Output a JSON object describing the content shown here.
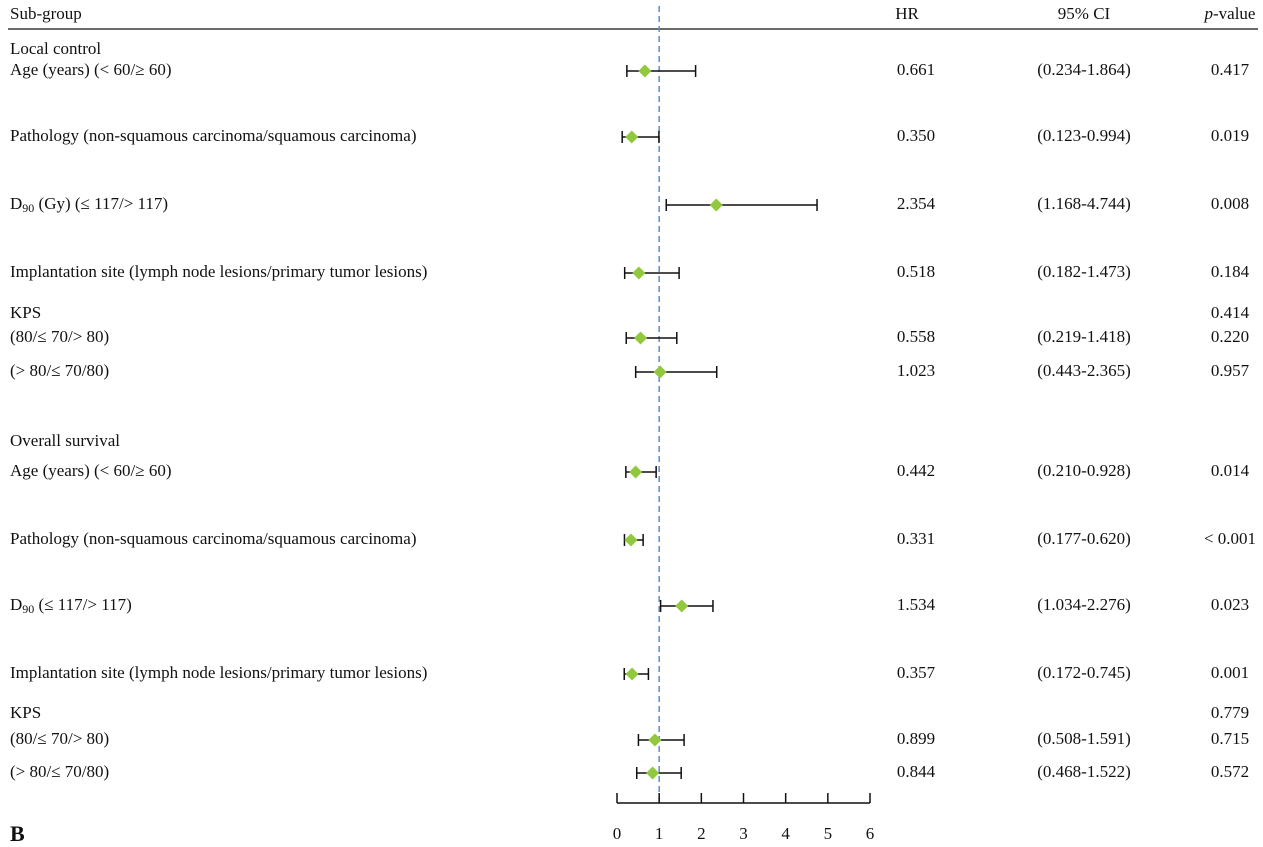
{
  "chart_data": {
    "type": "forest",
    "columns": {
      "subgroup": "Sub-group",
      "hr": "HR",
      "ci": "95% CI",
      "p_italic": "p",
      "p_rest": "-value"
    },
    "xlim": [
      0,
      6
    ],
    "xticks": [
      0,
      1,
      2,
      3,
      4,
      5,
      6
    ],
    "reference_line": 1,
    "marker_color": "#92c83e",
    "reference_color": "#5b8ccf",
    "panel_label": "B",
    "groups": [
      {
        "title": "Local control",
        "rows": [
          {
            "label": "Age (years) (< 60/≥ 60)",
            "hr": 0.661,
            "ci": [
              0.234,
              1.864
            ],
            "ci_label": "(0.234-1.864)",
            "p": "0.417"
          },
          {
            "label": "Pathology (non-squamous carcinoma/squamous carcinoma)",
            "hr": 0.35,
            "hr_label": "0.350",
            "ci": [
              0.123,
              0.994
            ],
            "ci_label": "(0.123-0.994)",
            "p": "0.019"
          },
          {
            "label": "D",
            "label_sub": "90",
            "label_rest": " (Gy) (≤ 117/> 117)",
            "hr": 2.354,
            "ci": [
              1.168,
              4.744
            ],
            "ci_label": "(1.168-4.744)",
            "p": "0.008"
          },
          {
            "label": "Implantation site (lymph node lesions/primary tumor lesions)",
            "hr": 0.518,
            "ci": [
              0.182,
              1.473
            ],
            "ci_label": "(0.182-1.473)",
            "p": "0.184"
          },
          {
            "label": "KPS",
            "p": "0.414"
          },
          {
            "label": "(80/≤ 70/> 80)",
            "hr": 0.558,
            "ci": [
              0.219,
              1.418
            ],
            "ci_label": "(0.219-1.418)",
            "p": "0.220"
          },
          {
            "label": "(> 80/≤ 70/80)",
            "hr": 1.023,
            "ci": [
              0.443,
              2.365
            ],
            "ci_label": "(0.443-2.365)",
            "p": "0.957"
          }
        ]
      },
      {
        "title": "Overall survival",
        "rows": [
          {
            "label": "Age (years) (< 60/≥ 60)",
            "hr": 0.442,
            "ci": [
              0.21,
              0.928
            ],
            "ci_label": "(0.210-0.928)",
            "p": "0.014"
          },
          {
            "label": "Pathology (non-squamous carcinoma/squamous carcinoma)",
            "hr": 0.331,
            "ci": [
              0.177,
              0.62
            ],
            "ci_label": "(0.177-0.620)",
            "p": "< 0.001"
          },
          {
            "label": "D",
            "label_sub": "90",
            "label_rest": " (≤ 117/> 117)",
            "hr": 1.534,
            "ci": [
              1.034,
              2.276
            ],
            "ci_label": "(1.034-2.276)",
            "p": "0.023"
          },
          {
            "label": "Implantation site (lymph node lesions/primary tumor lesions)",
            "hr": 0.357,
            "ci": [
              0.172,
              0.745
            ],
            "ci_label": "(0.172-0.745)",
            "p": "0.001"
          },
          {
            "label": "KPS",
            "p": "0.779"
          },
          {
            "label": "(80/≤ 70/> 80)",
            "hr": 0.899,
            "ci": [
              0.508,
              1.591
            ],
            "ci_label": "(0.508-1.591)",
            "p": "0.715"
          },
          {
            "label": "(> 80/≤ 70/80)",
            "hr": 0.844,
            "ci": [
              0.468,
              1.522
            ],
            "ci_label": "(0.468-1.522)",
            "p": "0.572"
          }
        ]
      }
    ]
  }
}
